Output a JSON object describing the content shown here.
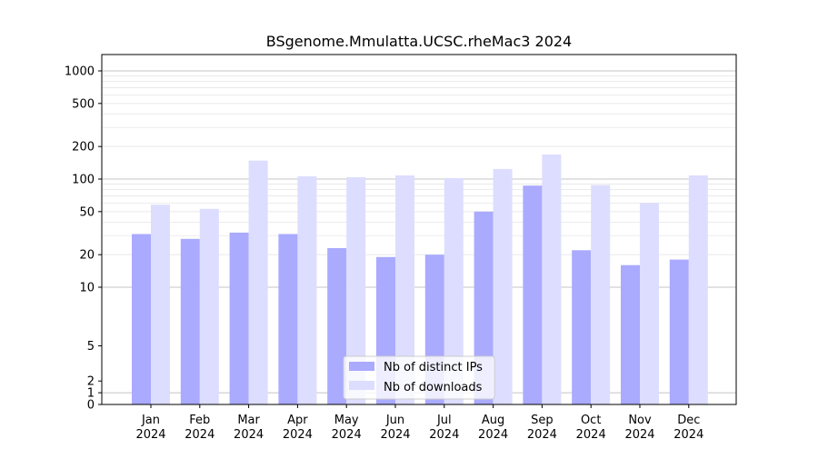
{
  "chart_data": {
    "type": "bar",
    "title": "BSgenome.Mmulatta.UCSC.rheMac3 2024",
    "xlabel": "",
    "ylabel": "",
    "y_scale": "symlog",
    "ylim": [
      0,
      1300
    ],
    "grid": true,
    "legend_position": "bottom-center",
    "categories": [
      [
        "Jan",
        "2024"
      ],
      [
        "Feb",
        "2024"
      ],
      [
        "Mar",
        "2024"
      ],
      [
        "Apr",
        "2024"
      ],
      [
        "May",
        "2024"
      ],
      [
        "Jun",
        "2024"
      ],
      [
        "Jul",
        "2024"
      ],
      [
        "Aug",
        "2024"
      ],
      [
        "Sep",
        "2024"
      ],
      [
        "Oct",
        "2024"
      ],
      [
        "Nov",
        "2024"
      ],
      [
        "Dec",
        "2024"
      ]
    ],
    "y_ticks": [
      0,
      1,
      2,
      5,
      10,
      20,
      50,
      100,
      200,
      500,
      1000
    ],
    "series": [
      {
        "name": "Nb of distinct IPs",
        "color": "#aaaaff",
        "values": [
          31,
          28,
          32,
          31,
          23,
          19,
          20,
          50,
          87,
          22,
          16,
          18
        ]
      },
      {
        "name": "Nb of downloads",
        "color": "#ddddff",
        "values": [
          58,
          53,
          148,
          106,
          104,
          108,
          102,
          124,
          169,
          88,
          60,
          108
        ]
      }
    ]
  }
}
